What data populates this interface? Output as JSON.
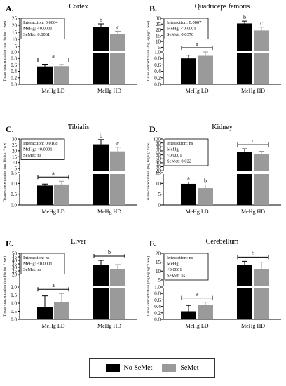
{
  "colors": {
    "no_semet": "#000000",
    "semet": "#9a9a9a"
  },
  "legend": {
    "no_semet": "No SeMet",
    "semet": "SeMet"
  },
  "chart_data": [
    {
      "type": "bar",
      "letter": "A.",
      "title": "Cortex",
      "ylabel": "Tissue concentration (mg Hg kg⁻¹ ww)",
      "categories": [
        "MeHg LD",
        "MeHg HD"
      ],
      "series": [
        {
          "name": "No SeMet",
          "values": [
            0.55,
            18.5
          ],
          "errors": [
            0.07,
            2.5
          ]
        },
        {
          "name": "SeMet",
          "values": [
            0.56,
            14.0
          ],
          "errors": [
            0.05,
            1.8
          ]
        }
      ],
      "lower_axis": {
        "ylim": [
          0,
          1.0
        ],
        "ticks": [
          "0.0",
          "0.2",
          "0.4",
          "0.6",
          "0.8",
          "1.0"
        ]
      },
      "upper_axis": {
        "ylim": [
          1.0,
          25
        ],
        "ticks": [
          "5",
          "10",
          "15",
          "20",
          "25"
        ]
      },
      "stats": [
        "Interaction: 0.0064",
        "MeHg: <0.0001",
        "SeMet: 0.0061"
      ],
      "sig": {
        "ld": "a",
        "hd_no": "b",
        "hd_se": "c"
      }
    },
    {
      "type": "bar",
      "letter": "B.",
      "title": "Quadriceps femoris",
      "ylabel": "Tissue concentration (mg Hg kg⁻¹ ww)",
      "categories": [
        "MeHg LD",
        "MeHg HD"
      ],
      "series": [
        {
          "name": "No SeMet",
          "values": [
            0.8,
            25.5
          ],
          "errors": [
            0.1,
            2.0
          ]
        },
        {
          "name": "SeMet",
          "values": [
            0.88,
            19.5
          ],
          "errors": [
            0.12,
            2.8
          ]
        }
      ],
      "lower_axis": {
        "ylim": [
          0,
          1.0
        ],
        "ticks": [
          "0.0",
          "0.2",
          "0.4",
          "0.6",
          "0.8",
          "1.0"
        ]
      },
      "upper_axis": {
        "ylim": [
          1.0,
          30
        ],
        "ticks": [
          "5",
          "10",
          "15",
          "20",
          "25",
          "30"
        ]
      },
      "stats": [
        "Interaction: 0.0007",
        "MeHg: <0.0001",
        "SeMet: 0.0370"
      ],
      "sig": {
        "ld": "a",
        "hd_no": "b",
        "hd_se": "c"
      }
    },
    {
      "type": "bar",
      "letter": "C.",
      "title": "Tibialis",
      "ylabel": "Tissue concentration (mg Hg kg⁻¹ ww)",
      "categories": [
        "MeHg LD",
        "MeHg HD"
      ],
      "series": [
        {
          "name": "No SeMet",
          "values": [
            0.9,
            25.5
          ],
          "errors": [
            0.07,
            4.0
          ]
        },
        {
          "name": "SeMet",
          "values": [
            0.95,
            19.5
          ],
          "errors": [
            0.15,
            3.5
          ]
        }
      ],
      "lower_axis": {
        "ylim": [
          0,
          1.5
        ],
        "ticks": [
          "0.0",
          "0.5",
          "1.0",
          "1.5"
        ]
      },
      "upper_axis": {
        "ylim": [
          1.5,
          30
        ],
        "ticks": [
          "5",
          "10",
          "15",
          "20",
          "25",
          "30"
        ]
      },
      "stats": [
        "Interaction: 0.0108",
        "MeHg: <0.0001",
        "SeMet: ns"
      ],
      "sig": {
        "ld": "a",
        "hd_no": "b",
        "hd_se": "c"
      }
    },
    {
      "type": "bar",
      "letter": "D.",
      "title": "Kidney",
      "ylabel": "Tissue concentration (mg Hg kg⁻¹ ww)",
      "categories": [
        "MeHg LD",
        "MeHg HD"
      ],
      "series": [
        {
          "name": "No SeMet",
          "values": [
            9.8,
            67
          ],
          "errors": [
            0.8,
            8
          ]
        },
        {
          "name": "SeMet",
          "values": [
            7.8,
            61
          ],
          "errors": [
            1.5,
            8
          ]
        }
      ],
      "lower_axis": {
        "ylim": [
          0,
          15
        ],
        "ticks": [
          "0",
          "5",
          "10",
          "15"
        ]
      },
      "upper_axis": {
        "ylim": [
          15,
          100
        ],
        "ticks": [
          "20",
          "30",
          "40",
          "50",
          "60",
          "70",
          "80",
          "90",
          "100"
        ]
      },
      "stats": [
        "Interaction: ns",
        "MeHg:",
        "<0.0001",
        "SeMet: 0.022"
      ],
      "sig": {
        "ld_no": "a",
        "ld_se": "b",
        "hd": "c"
      }
    },
    {
      "type": "bar",
      "letter": "E.",
      "title": "Liver",
      "ylabel": "Tissue concentration (mg Hg kg⁻¹ ww)",
      "categories": [
        "MeHg LD",
        "MeHg HD"
      ],
      "series": [
        {
          "name": "No SeMet",
          "values": [
            0.75,
            33
          ],
          "errors": [
            0.7,
            7
          ]
        },
        {
          "name": "SeMet",
          "values": [
            1.05,
            28
          ],
          "errors": [
            0.55,
            6
          ]
        }
      ],
      "lower_axis": {
        "ylim": [
          0,
          2
        ],
        "ticks": [
          "0.0",
          "0.5",
          "1.0",
          "1.5",
          "2.0"
        ]
      },
      "upper_axis": {
        "ylim": [
          2,
          50
        ],
        "ticks": [
          "20",
          "25",
          "30",
          "35",
          "40",
          "45",
          "50"
        ]
      },
      "stats": [
        "Interaction: ns",
        "MeHg: <0.0001",
        "SeMet: ns"
      ],
      "sig": {
        "ld": "a",
        "hd": "b"
      }
    },
    {
      "type": "bar",
      "letter": "F.",
      "title": "Cerebellum",
      "ylabel": "Tissue concentration (mg Hg kg⁻¹ ww)",
      "categories": [
        "MeHg LD",
        "MeHg HD"
      ],
      "series": [
        {
          "name": "No SeMet",
          "values": [
            0.25,
            13.5
          ],
          "errors": [
            0.18,
            2.0
          ]
        },
        {
          "name": "SeMet",
          "values": [
            0.45,
            11.0
          ],
          "errors": [
            0.08,
            4.0
          ]
        }
      ],
      "lower_axis": {
        "ylim": [
          0,
          1.0
        ],
        "ticks": [
          "0.0",
          "0.2",
          "0.4",
          "0.6",
          "0.8",
          "1.0"
        ]
      },
      "upper_axis": {
        "ylim": [
          1.0,
          20
        ],
        "ticks": [
          "5",
          "10",
          "15",
          "20"
        ]
      },
      "stats": [
        "Interaction: ns",
        "MeHg:",
        "<0.0001",
        "SeMet: ns"
      ],
      "sig": {
        "ld": "a",
        "hd": "b"
      }
    }
  ]
}
